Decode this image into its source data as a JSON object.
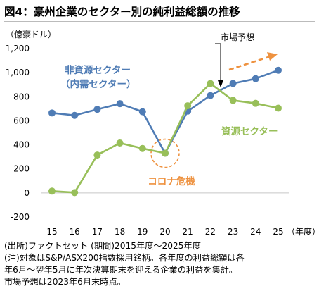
{
  "header": {
    "title": "図4：豪州企業のセクター別の純利益総額の推移"
  },
  "chart_data": {
    "type": "line",
    "unit_label": "（億豪ドル）",
    "x_unit_label": "（年度）",
    "categories": [
      "15",
      "16",
      "17",
      "18",
      "19",
      "20",
      "21",
      "22",
      "23",
      "24",
      "25"
    ],
    "yticks": [
      "1,200",
      "1,000",
      "800",
      "600",
      "400",
      "200",
      "0",
      "-200"
    ],
    "ylim": [
      -200,
      1200
    ],
    "grid": false,
    "series": [
      {
        "name_lines": [
          "非資源セクター",
          "（内需セクター）"
        ],
        "color": "#4f7cb5",
        "values": [
          665,
          645,
          695,
          742,
          675,
          330,
          680,
          810,
          910,
          950,
          1020
        ]
      },
      {
        "name_lines": [
          "資源セクター"
        ],
        "color": "#98bf59",
        "values": [
          15,
          3,
          315,
          415,
          370,
          330,
          725,
          910,
          770,
          745,
          705
        ]
      }
    ],
    "annotations": {
      "forecast": "市場予想",
      "crisis": "コロナ危機",
      "accent_color": "#ee9240"
    }
  },
  "notes": [
    "(出所)ファクトセット (期間)2015年度～2025年度",
    "(注)対象はS&P/ASX200指数採用銘柄。各年度の利益総額は各",
    "年6月～翌年5月に年次決算期末を迎える企業の利益を集計。",
    "市場予想は2023年6月末時点。"
  ]
}
